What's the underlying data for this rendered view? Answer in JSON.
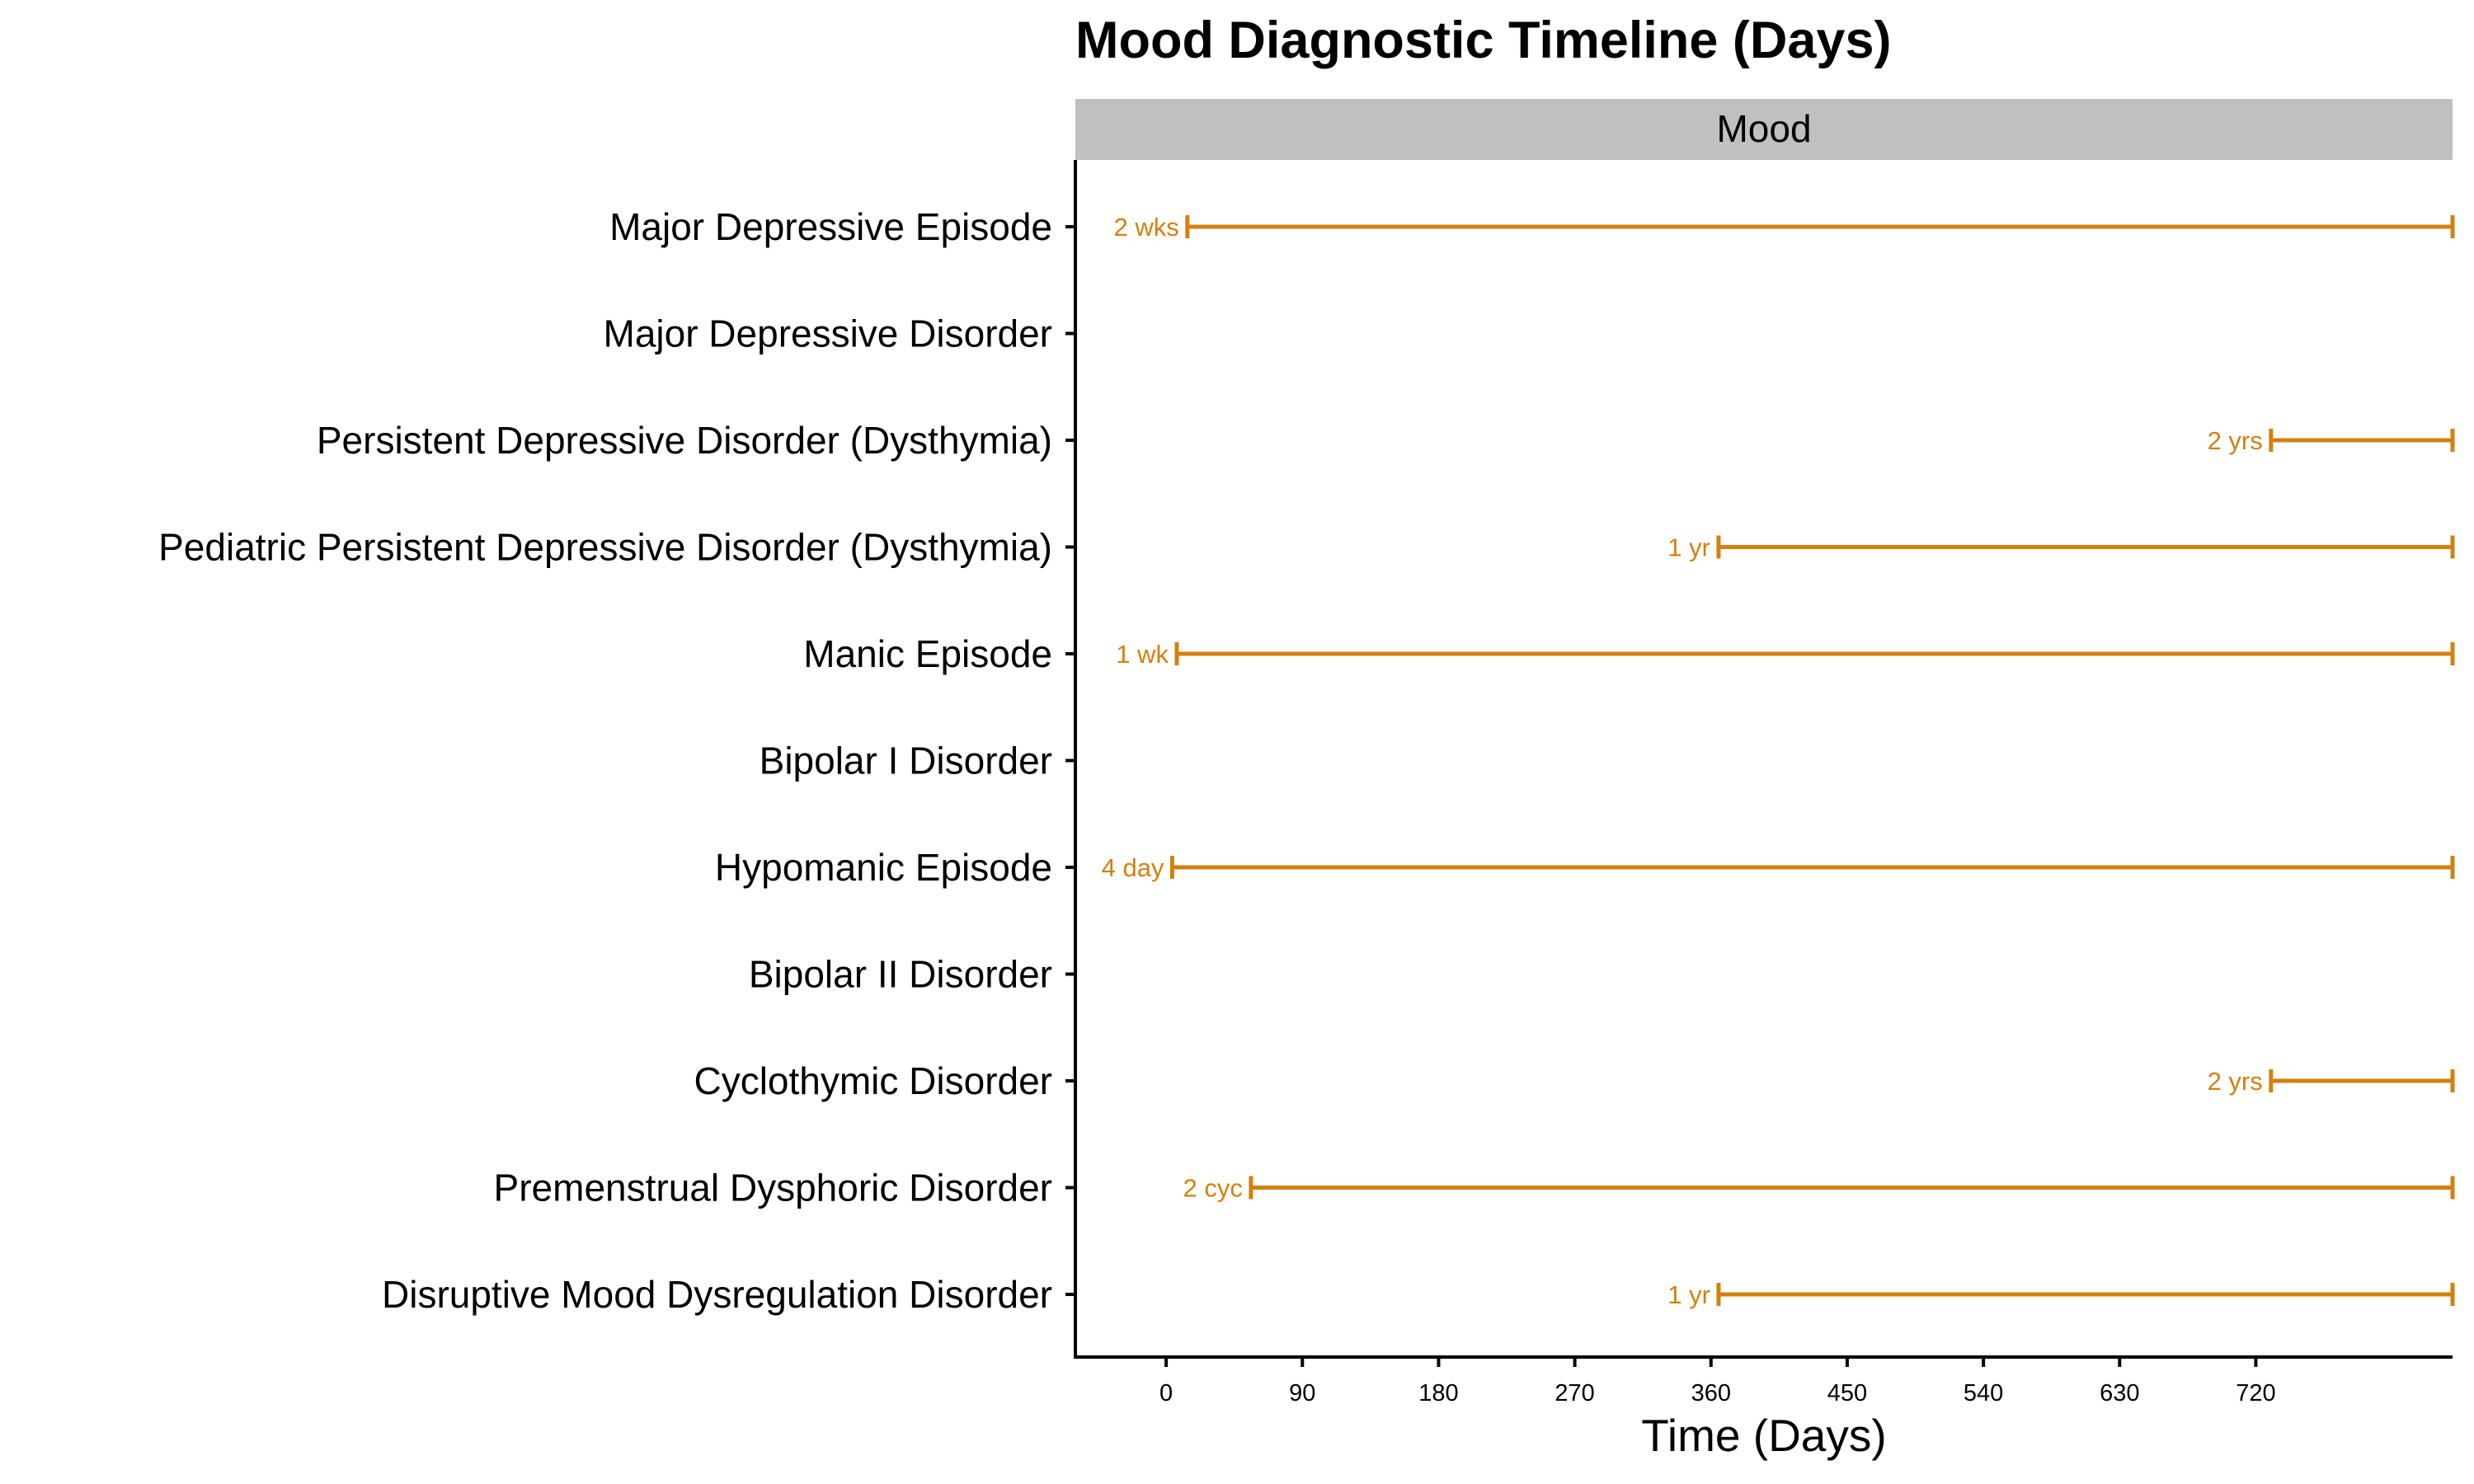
{
  "chart_data": {
    "type": "timeline",
    "title": "Mood Diagnostic Timeline (Days)",
    "facet_label": "Mood",
    "xlabel": "Time (Days)",
    "ylabel": "",
    "xlim": [
      -60,
      850
    ],
    "xticks": [
      0,
      90,
      180,
      270,
      360,
      450,
      540,
      630,
      720
    ],
    "grid": false,
    "legend": "none",
    "color": "#D4800F",
    "categories": [
      "Major Depressive Episode",
      "Major Depressive Disorder",
      "Persistent Depressive Disorder (Dysthymia)",
      "Pediatric Persistent Depressive Disorder (Dysthymia)",
      "Manic Episode",
      "Bipolar I Disorder",
      "Hypomanic Episode",
      "Bipolar II Disorder",
      "Cyclothymic Disorder",
      "Premenstrual Dysphoric Disorder",
      "Disruptive Mood Dysregulation Disorder"
    ],
    "intervals": [
      {
        "category": "Major Depressive Episode",
        "start": 14,
        "end": 850,
        "label": "2 wks"
      },
      {
        "category": "Persistent Depressive Disorder (Dysthymia)",
        "start": 730,
        "end": 850,
        "label": "2 yrs"
      },
      {
        "category": "Pediatric Persistent Depressive Disorder (Dysthymia)",
        "start": 365,
        "end": 850,
        "label": "1 yr"
      },
      {
        "category": "Manic Episode",
        "start": 7,
        "end": 850,
        "label": "1 wk"
      },
      {
        "category": "Hypomanic Episode",
        "start": 4,
        "end": 850,
        "label": "4 day"
      },
      {
        "category": "Cyclothymic Disorder",
        "start": 730,
        "end": 850,
        "label": "2 yrs"
      },
      {
        "category": "Premenstrual Dysphoric Disorder",
        "start": 56,
        "end": 850,
        "label": "2 cyc"
      },
      {
        "category": "Disruptive Mood Dysregulation Disorder",
        "start": 365,
        "end": 850,
        "label": "1 yr"
      }
    ]
  }
}
